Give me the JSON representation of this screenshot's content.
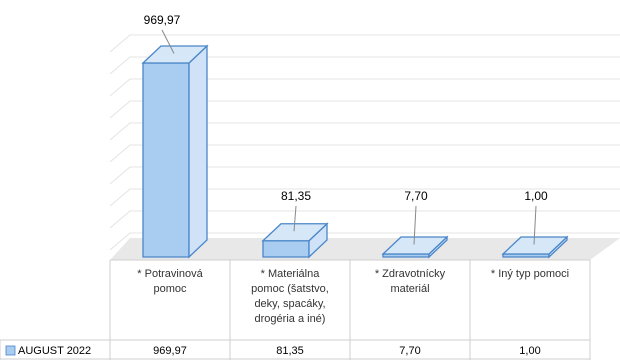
{
  "chart_data": {
    "type": "bar",
    "style": "3d-column-with-data-table",
    "categories": [
      [
        "* Potravinová",
        "pomoc"
      ],
      [
        "* Materiálna",
        "pomoc (šatstvo,",
        "deky, spacáky,",
        "drogéria a iné)"
      ],
      [
        "* Zdravotnícky",
        "materiál"
      ],
      [
        "* Iný typ pomoci"
      ]
    ],
    "series": [
      {
        "name": "AUGUST 2022",
        "values": [
          969.97,
          81.35,
          7.7,
          1.0
        ],
        "labels": [
          "969,97",
          "81,35",
          "7,70",
          "1,00"
        ]
      }
    ],
    "ylim": [
      0,
      1000
    ],
    "grid": true,
    "legend": "data-table-left",
    "colors": {
      "bar_face": "#a9cdf0",
      "bar_side": "#cfe2f7",
      "bar_top": "#d6e7f8",
      "bar_edge": "#4a86c8",
      "floor": "#e8e8e8",
      "grid": "#e4e4e4",
      "table_border": "#cfcfcf"
    }
  }
}
